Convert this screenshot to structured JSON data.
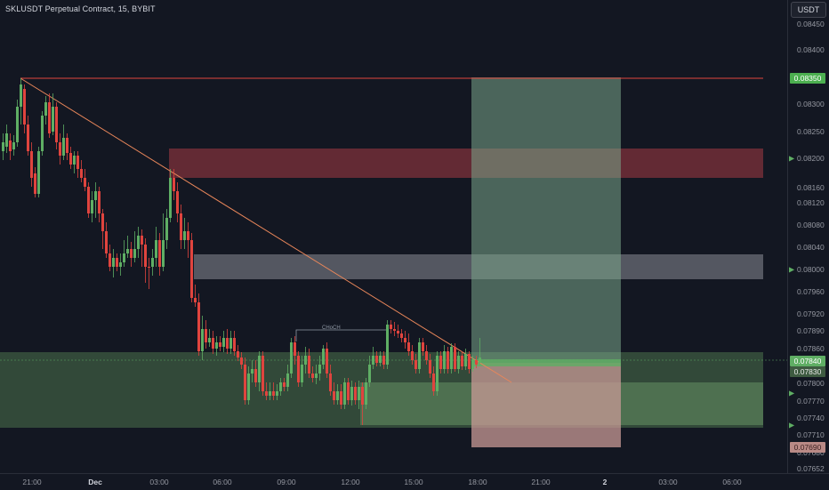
{
  "title": "SKLUSDT Perpetual Contract, 15, BYBIT",
  "currency_button": "USDT",
  "annotation_choch": "CHoCH",
  "price_axis": [
    "0.08450",
    "0.08400",
    "0.08300",
    "0.08250",
    "0.08160",
    "0.08120",
    "0.08080",
    "0.08040",
    "0.07960",
    "0.07920",
    "0.07890",
    "0.07860",
    "0.07800",
    "0.07770",
    "0.07740",
    "0.07710",
    "0.07680",
    "0.07652"
  ],
  "price_tags": {
    "target": "0.08350",
    "ob_upper": "0.08200",
    "ob_mid": "0.08000",
    "current_1": "0.07840",
    "current_2": "0.07830",
    "stop": "0.07690"
  },
  "time_axis": [
    "21:00",
    "Dec",
    "03:00",
    "06:00",
    "09:00",
    "12:00",
    "15:00",
    "18:00",
    "21:00",
    "2",
    "03:00",
    "06:00"
  ],
  "colors": {
    "background": "#131722",
    "bull": "#5fae64",
    "bear": "#e0443e",
    "trendline": "#e8865a",
    "supply_zone": "#a63b44",
    "demand_zone": "#3a5a3c",
    "target_zone": "#6b8f75",
    "stop_zone": "#b98a86"
  }
}
